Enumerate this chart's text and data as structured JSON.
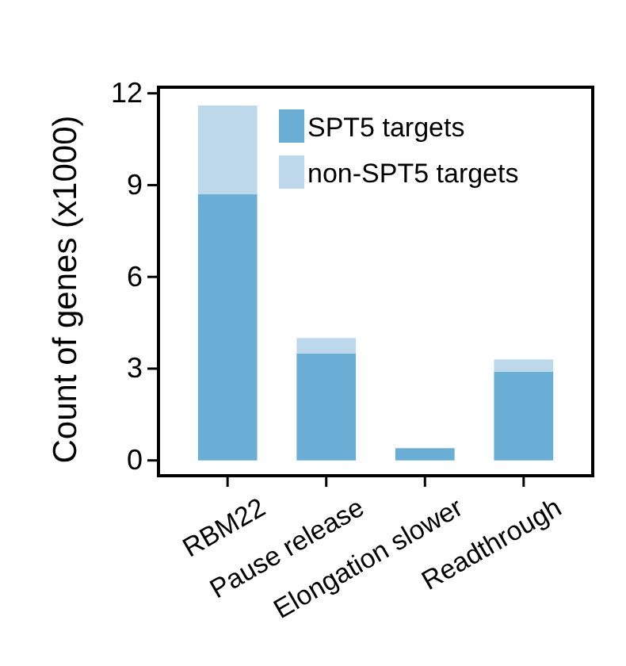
{
  "chart_data": {
    "type": "bar",
    "ylabel": "Count of genes (x1000)",
    "categories": [
      "RBM22",
      "Pause release",
      "Elongation slower",
      "Readthrough"
    ],
    "stacked": true,
    "series": [
      {
        "name": "SPT5 targets",
        "color": "#6aaed6",
        "values": [
          8.7,
          3.5,
          0.4,
          2.9
        ]
      },
      {
        "name": "non-SPT5 targets",
        "color": "#bdd8ea",
        "values": [
          2.9,
          0.5,
          0,
          0.4
        ]
      }
    ],
    "ylim": [
      -0.5,
      12.2
    ],
    "yticks": [
      0,
      3,
      6,
      9,
      12
    ],
    "legend": "top right",
    "grid": false
  }
}
